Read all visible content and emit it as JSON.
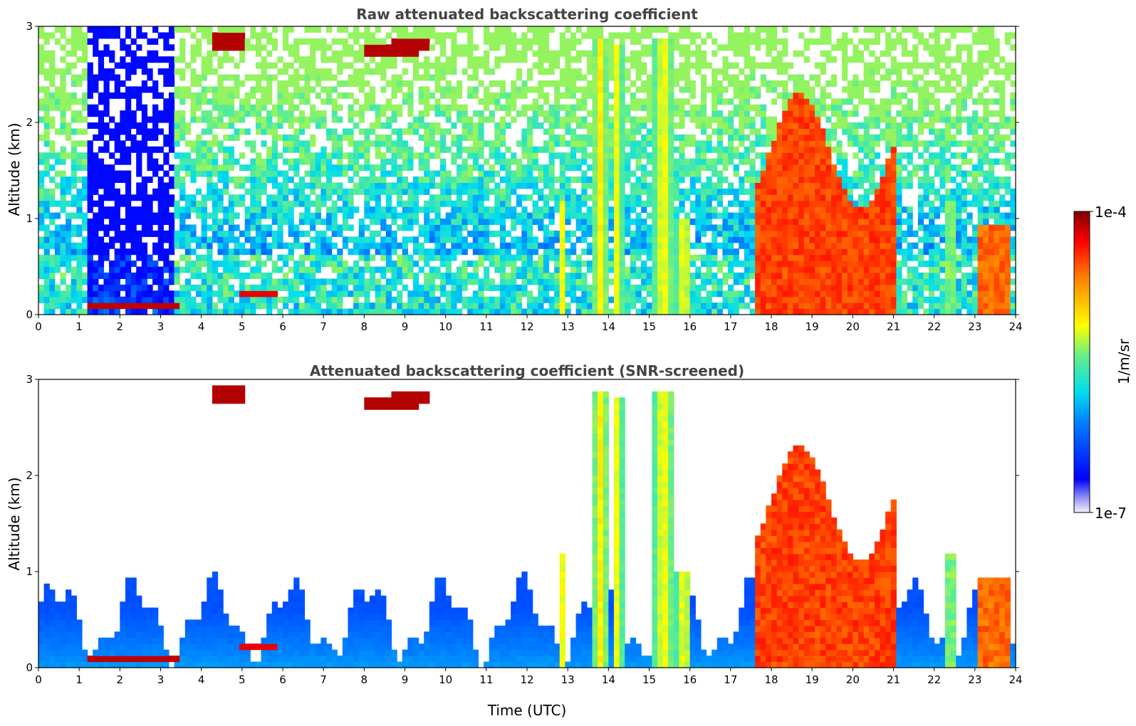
{
  "chart_data": [
    {
      "type": "heatmap",
      "title": "Raw attenuated backscattering coefficient",
      "xlabel": "",
      "ylabel": "Altitude (km)",
      "xlim": [
        0,
        24
      ],
      "ylim": [
        0,
        3
      ],
      "xticks": [
        "0",
        "1",
        "2",
        "3",
        "4",
        "5",
        "6",
        "7",
        "8",
        "9",
        "10",
        "11",
        "12",
        "13",
        "14",
        "15",
        "16",
        "17",
        "18",
        "19",
        "20",
        "21",
        "22",
        "23",
        "24"
      ],
      "yticks": [
        "0",
        "1",
        "2",
        "3"
      ],
      "screened": false
    },
    {
      "type": "heatmap",
      "title": "Attenuated backscattering coefficient (SNR-screened)",
      "xlabel": "Time (UTC)",
      "ylabel": "Altitude (km)",
      "xlim": [
        0,
        24
      ],
      "ylim": [
        0,
        3
      ],
      "xticks": [
        "0",
        "1",
        "2",
        "3",
        "4",
        "5",
        "6",
        "7",
        "8",
        "9",
        "10",
        "11",
        "12",
        "13",
        "14",
        "15",
        "16",
        "17",
        "18",
        "19",
        "20",
        "21",
        "22",
        "23",
        "24"
      ],
      "yticks": [
        "0",
        "1",
        "2",
        "3"
      ],
      "screened": true
    }
  ],
  "colorbar": {
    "label": "1/m/sr",
    "max_label": "1e-4",
    "min_label": "1e-7",
    "scale": "log",
    "colormap": "jet",
    "range": [
      1e-07,
      0.0001
    ]
  }
}
